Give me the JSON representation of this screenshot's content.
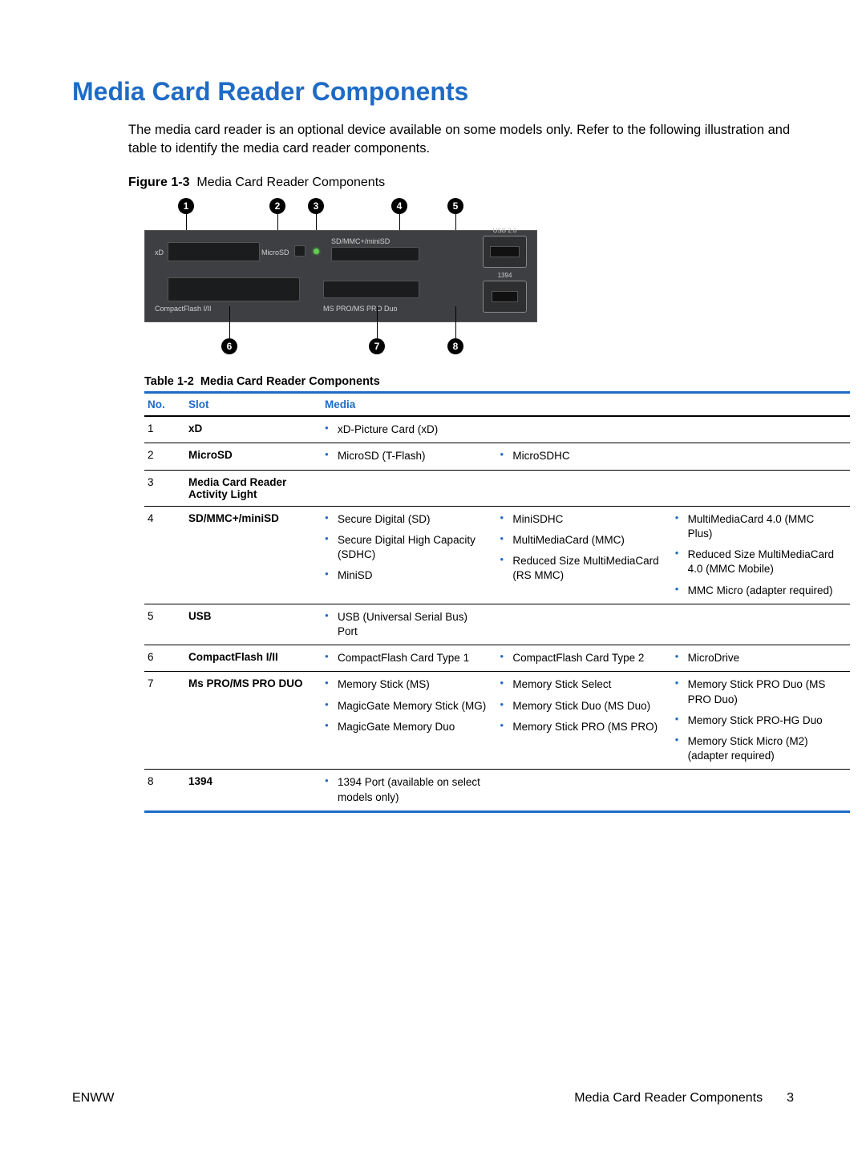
{
  "colors": {
    "heading": "#1e6bc6",
    "table_header": "#1e6bc6",
    "table_border": "#1e6bc6",
    "bullet": "#1e6bc6",
    "panel_bg": "#3d3f42",
    "slot_bg": "#1b1c1e",
    "led": "#5fcf4b"
  },
  "heading": "Media Card Reader Components",
  "intro": "The media card reader is an optional device available on some models only. Refer to the following illustration and table to identify the media card reader components.",
  "figure": {
    "label": "Figure 1-3",
    "caption": "Media Card Reader Components",
    "callouts_top": [
      1,
      2,
      3,
      4,
      5
    ],
    "callouts_bottom": [
      6,
      7,
      8
    ],
    "panel_labels": {
      "xd": "xD",
      "microsd": "MicroSD",
      "sdmmc": "SD/MMC+/miniSD",
      "cf": "CompactFlash I/II",
      "mspro": "MS PRO/MS PRO Duo",
      "usb": "USB 2.0",
      "p1394": "1394"
    }
  },
  "table": {
    "label": "Table 1-2",
    "caption": "Media Card Reader Components",
    "head": {
      "no": "No.",
      "slot": "Slot",
      "media": "Media"
    },
    "rows": [
      {
        "no": "1",
        "slot": "xD",
        "media": [
          [
            "xD-Picture Card (xD)"
          ],
          [],
          []
        ]
      },
      {
        "no": "2",
        "slot": "MicroSD",
        "media": [
          [
            "MicroSD (T-Flash)"
          ],
          [
            "MicroSDHC"
          ],
          []
        ]
      },
      {
        "no": "3",
        "slot": "Media Card Reader Activity Light",
        "media": [
          [],
          [],
          []
        ]
      },
      {
        "no": "4",
        "slot": "SD/MMC+/miniSD",
        "media": [
          [
            "Secure Digital (SD)",
            "Secure Digital High Capacity (SDHC)",
            "MiniSD"
          ],
          [
            "MiniSDHC",
            "MultiMediaCard (MMC)",
            "Reduced Size MultiMediaCard (RS MMC)"
          ],
          [
            "MultiMediaCard 4.0 (MMC Plus)",
            "Reduced Size MultiMediaCard 4.0 (MMC Mobile)",
            "MMC Micro (adapter required)"
          ]
        ]
      },
      {
        "no": "5",
        "slot": "USB",
        "media": [
          [
            "USB (Universal Serial Bus) Port"
          ],
          [],
          []
        ]
      },
      {
        "no": "6",
        "slot": "CompactFlash I/II",
        "media": [
          [
            "CompactFlash Card Type 1"
          ],
          [
            "CompactFlash Card Type 2"
          ],
          [
            "MicroDrive"
          ]
        ]
      },
      {
        "no": "7",
        "slot": "Ms PRO/MS PRO DUO",
        "media": [
          [
            "Memory Stick (MS)",
            "MagicGate Memory Stick (MG)",
            "MagicGate Memory Duo"
          ],
          [
            "Memory Stick Select",
            "Memory Stick Duo (MS Duo)",
            "Memory Stick PRO (MS PRO)"
          ],
          [
            "Memory Stick PRO Duo (MS PRO Duo)",
            "Memory Stick PRO-HG Duo",
            "Memory Stick Micro (M2) (adapter required)"
          ]
        ]
      },
      {
        "no": "8",
        "slot": "1394",
        "media": [
          [
            "1394 Port (available on select models only)"
          ],
          [],
          []
        ]
      }
    ]
  },
  "footer": {
    "left": "ENWW",
    "right_label": "Media Card Reader Components",
    "page": "3"
  }
}
